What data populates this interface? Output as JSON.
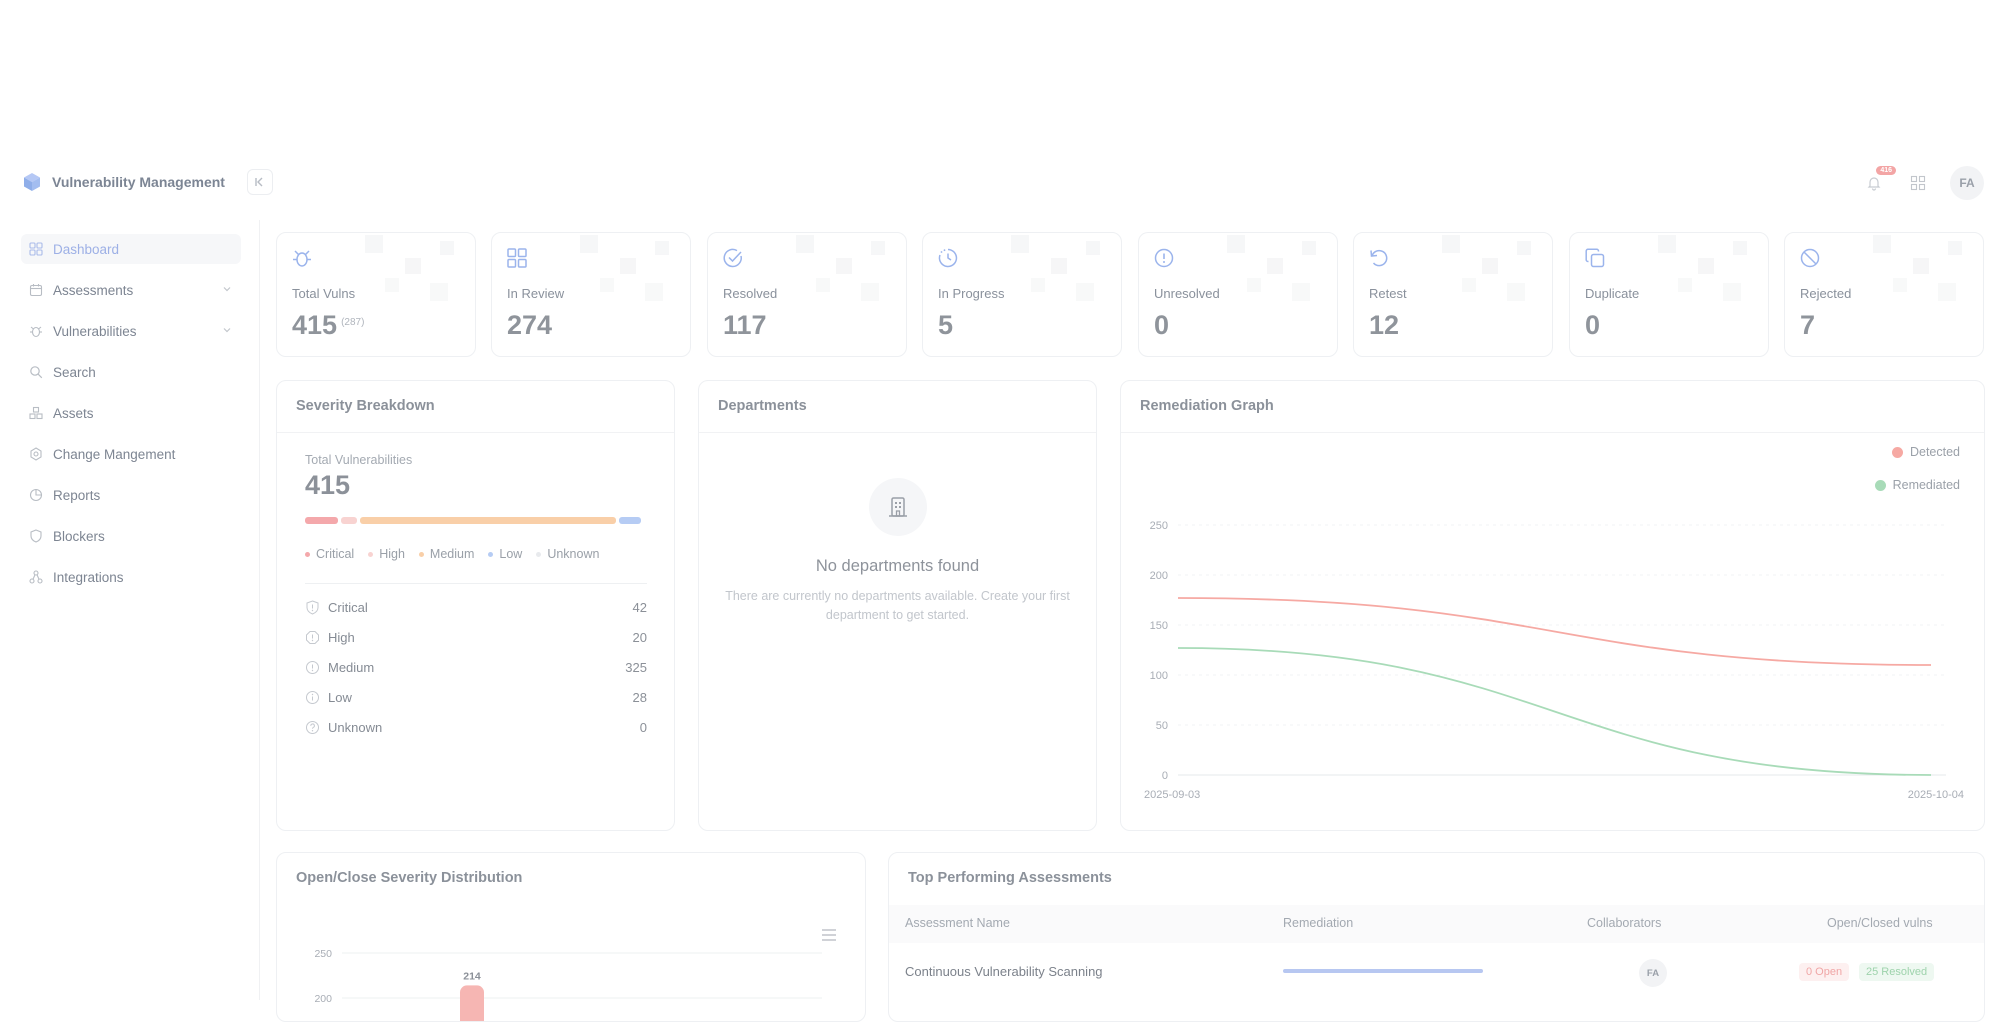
{
  "app": {
    "title": "Vulnerability Management",
    "notification_count": "416",
    "user_initials": "FA"
  },
  "sidebar": {
    "items": [
      {
        "label": "Dashboard",
        "icon": "grid-icon",
        "active": true
      },
      {
        "label": "Assessments",
        "icon": "calendar-icon",
        "has_chevron": true
      },
      {
        "label": "Vulnerabilities",
        "icon": "bug-icon",
        "has_chevron": true
      },
      {
        "label": "Search",
        "icon": "search-icon"
      },
      {
        "label": "Assets",
        "icon": "assets-icon"
      },
      {
        "label": "Change Mangement",
        "icon": "gear-icon"
      },
      {
        "label": "Reports",
        "icon": "pie-chart-icon"
      },
      {
        "label": "Blockers",
        "icon": "shield-icon"
      },
      {
        "label": "Integrations",
        "icon": "integrations-icon"
      }
    ]
  },
  "stats": [
    {
      "label": "Total Vulns",
      "value": "415",
      "sub": "(287)",
      "icon": "bug-icon"
    },
    {
      "label": "In Review",
      "value": "274",
      "icon": "grid-icon"
    },
    {
      "label": "Resolved",
      "value": "117",
      "icon": "check-circle-icon"
    },
    {
      "label": "In Progress",
      "value": "5",
      "icon": "clock-icon"
    },
    {
      "label": "Unresolved",
      "value": "0",
      "icon": "alert-circle-icon"
    },
    {
      "label": "Retest",
      "value": "12",
      "icon": "rotate-icon"
    },
    {
      "label": "Duplicate",
      "value": "0",
      "icon": "copy-icon"
    },
    {
      "label": "Rejected",
      "value": "7",
      "icon": "ban-icon"
    }
  ],
  "severity": {
    "title": "Severity Breakdown",
    "total_label": "Total Vulnerabilities",
    "total": "415",
    "legend": [
      {
        "label": "Critical",
        "color": "#f4a8ab"
      },
      {
        "label": "High",
        "color": "#f8d3d1"
      },
      {
        "label": "Medium",
        "color": "#f9cfa8"
      },
      {
        "label": "Low",
        "color": "#b6ccf4"
      },
      {
        "label": "Unknown",
        "color": "#e8eaed"
      }
    ],
    "rows": [
      {
        "label": "Critical",
        "value": "42"
      },
      {
        "label": "High",
        "value": "20"
      },
      {
        "label": "Medium",
        "value": "325"
      },
      {
        "label": "Low",
        "value": "28"
      },
      {
        "label": "Unknown",
        "value": "0"
      }
    ]
  },
  "departments": {
    "title": "Departments",
    "empty_title": "No departments found",
    "empty_desc": "There are currently no departments available. Create your first department to get started."
  },
  "remediation": {
    "title": "Remediation Graph",
    "legend": [
      {
        "label": "Detected",
        "color": "#f6a9a3"
      },
      {
        "label": "Remediated",
        "color": "#a8dbb8"
      }
    ]
  },
  "severity_distribution": {
    "title": "Open/Close Severity Distribution"
  },
  "top_assessments": {
    "title": "Top Performing Assessments",
    "columns": [
      "Assessment Name",
      "Remediation",
      "Collaborators",
      "Open/Closed vulns"
    ],
    "rows": [
      {
        "name": "Continuous Vulnerability Scanning",
        "collaborator": "FA",
        "open": "0 Open",
        "resolved": "25 Resolved",
        "remediation": 1.0
      }
    ]
  },
  "chart_data": [
    {
      "type": "line",
      "title": "Remediation Graph",
      "x": [
        "2025-09-03",
        "2025-10-04"
      ],
      "ylim": [
        0,
        250
      ],
      "yticks": [
        0,
        50,
        100,
        150,
        200,
        250
      ],
      "series": [
        {
          "name": "Detected",
          "color": "#f6a9a3",
          "values": [
            177,
            110
          ]
        },
        {
          "name": "Remediated",
          "color": "#a8dbb8",
          "values": [
            127,
            0
          ]
        }
      ],
      "legend": "top-right",
      "grid": true
    },
    {
      "type": "bar",
      "title": "Open/Close Severity Distribution",
      "yticks": [
        200,
        250
      ],
      "data_labels": [
        "214"
      ],
      "values": [
        214
      ]
    }
  ]
}
